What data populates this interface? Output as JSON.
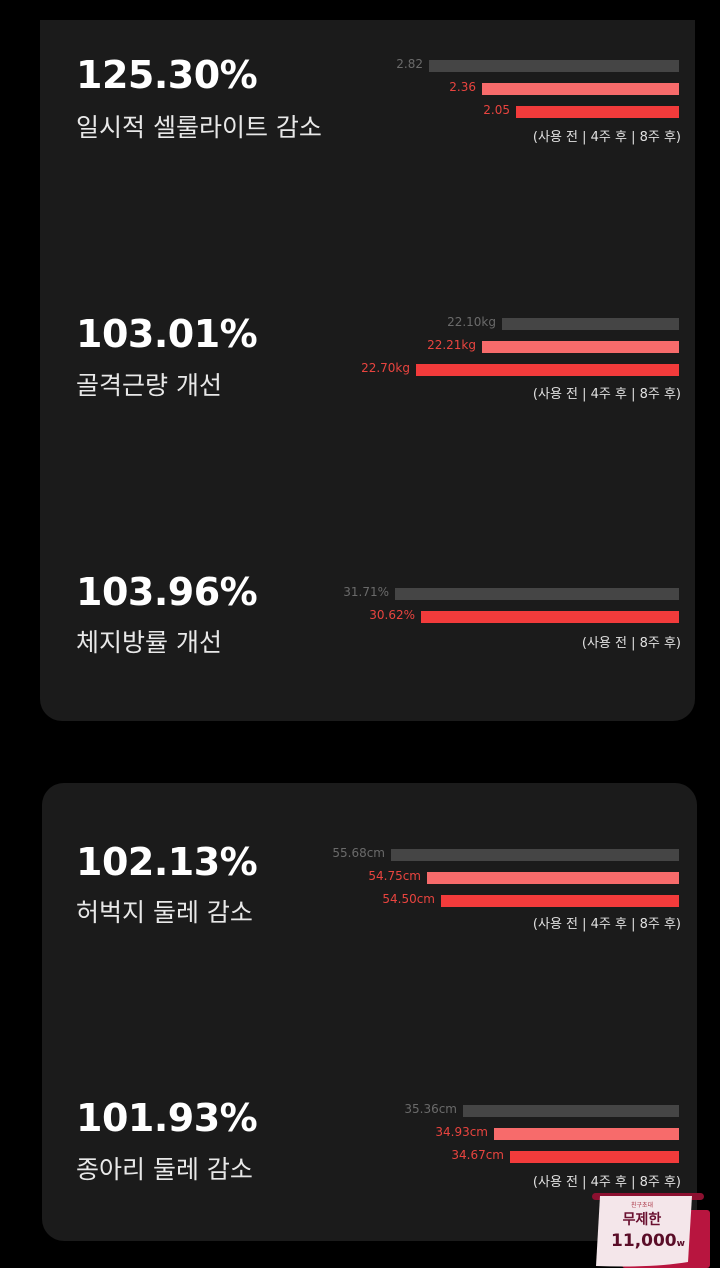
{
  "colors": {
    "before": "#454545",
    "week4": "#f76b6b",
    "week8": "#f23b3b",
    "card": "#1b1b1b"
  },
  "stats": [
    {
      "percent": "125.30%",
      "title": "일시적 셀룰라이트 감소",
      "bars": [
        {
          "label": "2.82",
          "value": 2.82,
          "series": "before"
        },
        {
          "label": "2.36",
          "value": 2.36,
          "series": "week4"
        },
        {
          "label": "2.05",
          "value": 2.05,
          "series": "week8"
        }
      ],
      "legend": "(사용 전 | 4주 후 | 8주 후)"
    },
    {
      "percent": "103.01%",
      "title": "골격근량 개선",
      "bars": [
        {
          "label": "22.10kg",
          "value": 22.1,
          "series": "before"
        },
        {
          "label": "22.21kg",
          "value": 22.21,
          "series": "week4"
        },
        {
          "label": "22.70kg",
          "value": 22.7,
          "series": "week8"
        }
      ],
      "legend": "(사용 전 | 4주 후 | 8주 후)"
    },
    {
      "percent": "103.96%",
      "title": "체지방률 개선",
      "bars": [
        {
          "label": "31.71%",
          "value": 31.71,
          "series": "before"
        },
        {
          "label": "30.62%",
          "value": 30.62,
          "series": "week8"
        }
      ],
      "legend": "(사용 전 | 8주 후)"
    },
    {
      "percent": "102.13%",
      "title": "허벅지 둘레 감소",
      "bars": [
        {
          "label": "55.68cm",
          "value": 55.68,
          "series": "before"
        },
        {
          "label": "54.75cm",
          "value": 54.75,
          "series": "week4"
        },
        {
          "label": "54.50cm",
          "value": 54.5,
          "series": "week8"
        }
      ],
      "legend": "(사용 전 | 4주 후 | 8주 후)"
    },
    {
      "percent": "101.93%",
      "title": "종아리 둘레 감소",
      "bars": [
        {
          "label": "35.36cm",
          "value": 35.36,
          "series": "before"
        },
        {
          "label": "34.93cm",
          "value": 34.93,
          "series": "week4"
        },
        {
          "label": "34.67cm",
          "value": 34.67,
          "series": "week8"
        }
      ],
      "legend": "(사용 전 | 4주 후 | 8주 후)"
    }
  ],
  "promo": {
    "tag": "친구초대",
    "title": "무제한",
    "price": "11,000",
    "unit": "w"
  }
}
